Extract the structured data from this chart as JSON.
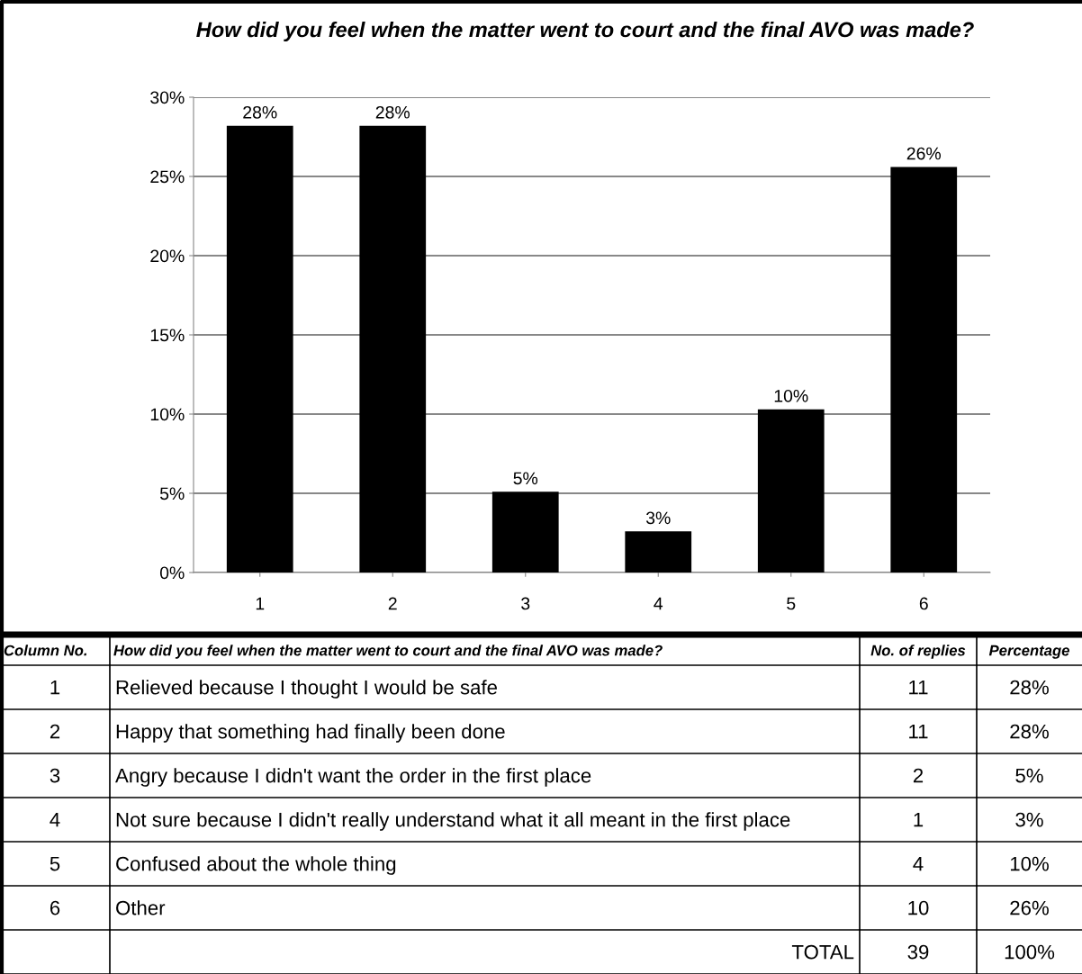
{
  "chart_data": {
    "type": "bar",
    "title": "How did you feel when the matter went to court and the final AVO was made?",
    "categories": [
      "1",
      "2",
      "3",
      "4",
      "5",
      "6"
    ],
    "values": [
      28.2,
      28.2,
      5.1,
      2.6,
      10.3,
      25.6
    ],
    "value_labels": [
      "28%",
      "28%",
      "5%",
      "3%",
      "10%",
      "26%"
    ],
    "color": "#000000",
    "ylim": [
      0,
      30
    ],
    "yticks": [
      {
        "value": 0,
        "label": "0%"
      },
      {
        "value": 5,
        "label": "5%"
      },
      {
        "value": 10,
        "label": "10%"
      },
      {
        "value": 15,
        "label": "15%"
      },
      {
        "value": 20,
        "label": "20%"
      },
      {
        "value": 25,
        "label": "25%"
      },
      {
        "value": 30,
        "label": "30%"
      }
    ],
    "grid": "y",
    "annotations": [
      "Column No.",
      "How did you feel when the matter went to court and the final AVO was made?",
      "No. of replies",
      "Percentage",
      "Relieved because I thought I would be safe",
      "11",
      "28%",
      "Happy that something had finally been done",
      "11",
      "28%",
      "Angry because I didn't want the order in the first place",
      "2",
      "5%",
      "Not sure because I didn't really understand what it all meant in the first place",
      "1",
      "3%",
      "Confused about the whole thing",
      "4",
      "10%",
      "Other",
      "10",
      "26%",
      "TOTAL",
      "39",
      "100%"
    ]
  }
}
